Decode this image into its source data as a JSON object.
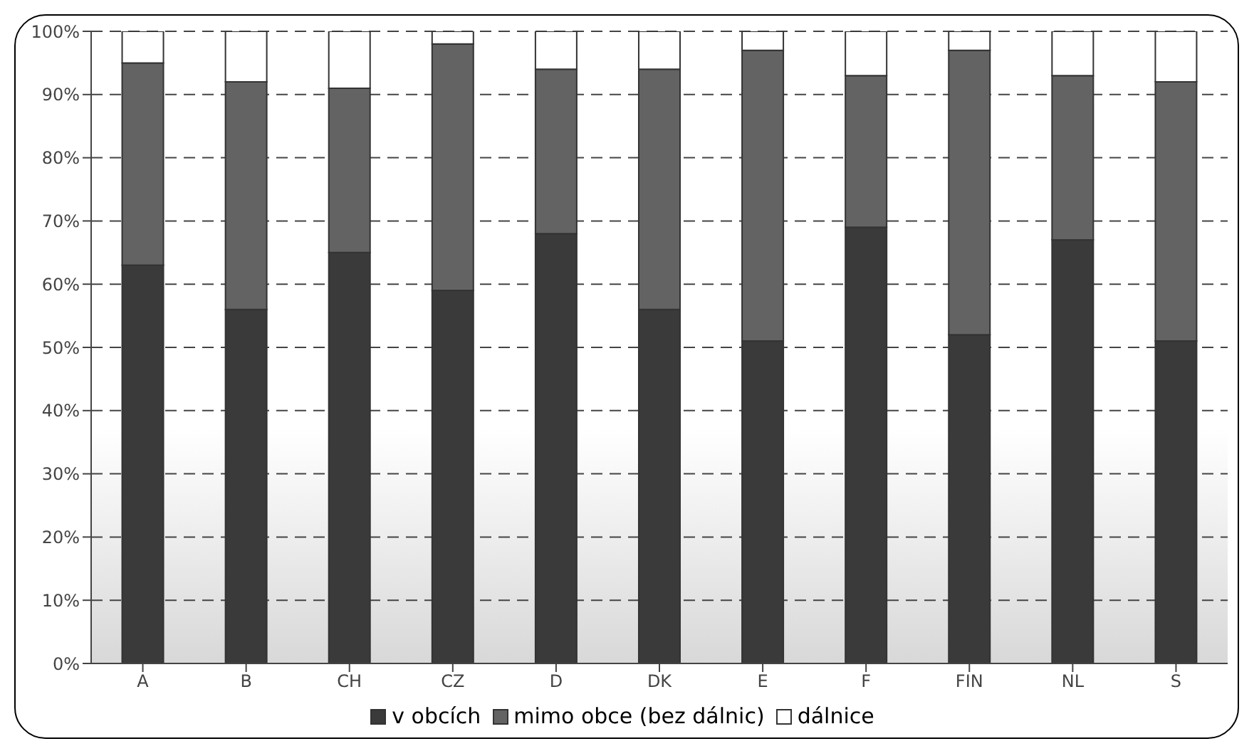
{
  "chart_data": {
    "type": "bar",
    "stacked": true,
    "categories": [
      "A",
      "B",
      "CH",
      "CZ",
      "D",
      "DK",
      "E",
      "F",
      "FIN",
      "NL",
      "S"
    ],
    "series": [
      {
        "name": "v obcích",
        "color": "#3a3a3a",
        "values": [
          63,
          56,
          65,
          59,
          68,
          56,
          51,
          69,
          52,
          67,
          51
        ]
      },
      {
        "name": "mimo obce (bez dálnic)",
        "color": "#636363",
        "values": [
          32,
          36,
          26,
          39,
          26,
          38,
          46,
          24,
          45,
          26,
          41
        ]
      },
      {
        "name": "dálnice",
        "color": "#ffffff",
        "values": [
          5,
          8,
          9,
          2,
          6,
          6,
          3,
          7,
          3,
          7,
          8
        ]
      }
    ],
    "ylim": [
      0,
      100
    ],
    "yticks": [
      {
        "value": 0,
        "label": "0%"
      },
      {
        "value": 10,
        "label": "10%"
      },
      {
        "value": 20,
        "label": "20%"
      },
      {
        "value": 30,
        "label": "30%"
      },
      {
        "value": 40,
        "label": "40%"
      },
      {
        "value": 50,
        "label": "50%"
      },
      {
        "value": 60,
        "label": "60%"
      },
      {
        "value": 70,
        "label": "70%"
      },
      {
        "value": 80,
        "label": "80%"
      },
      {
        "value": 90,
        "label": "90%"
      },
      {
        "value": 100,
        "label": "100%"
      }
    ],
    "grid": "y",
    "legend": "bottom"
  }
}
